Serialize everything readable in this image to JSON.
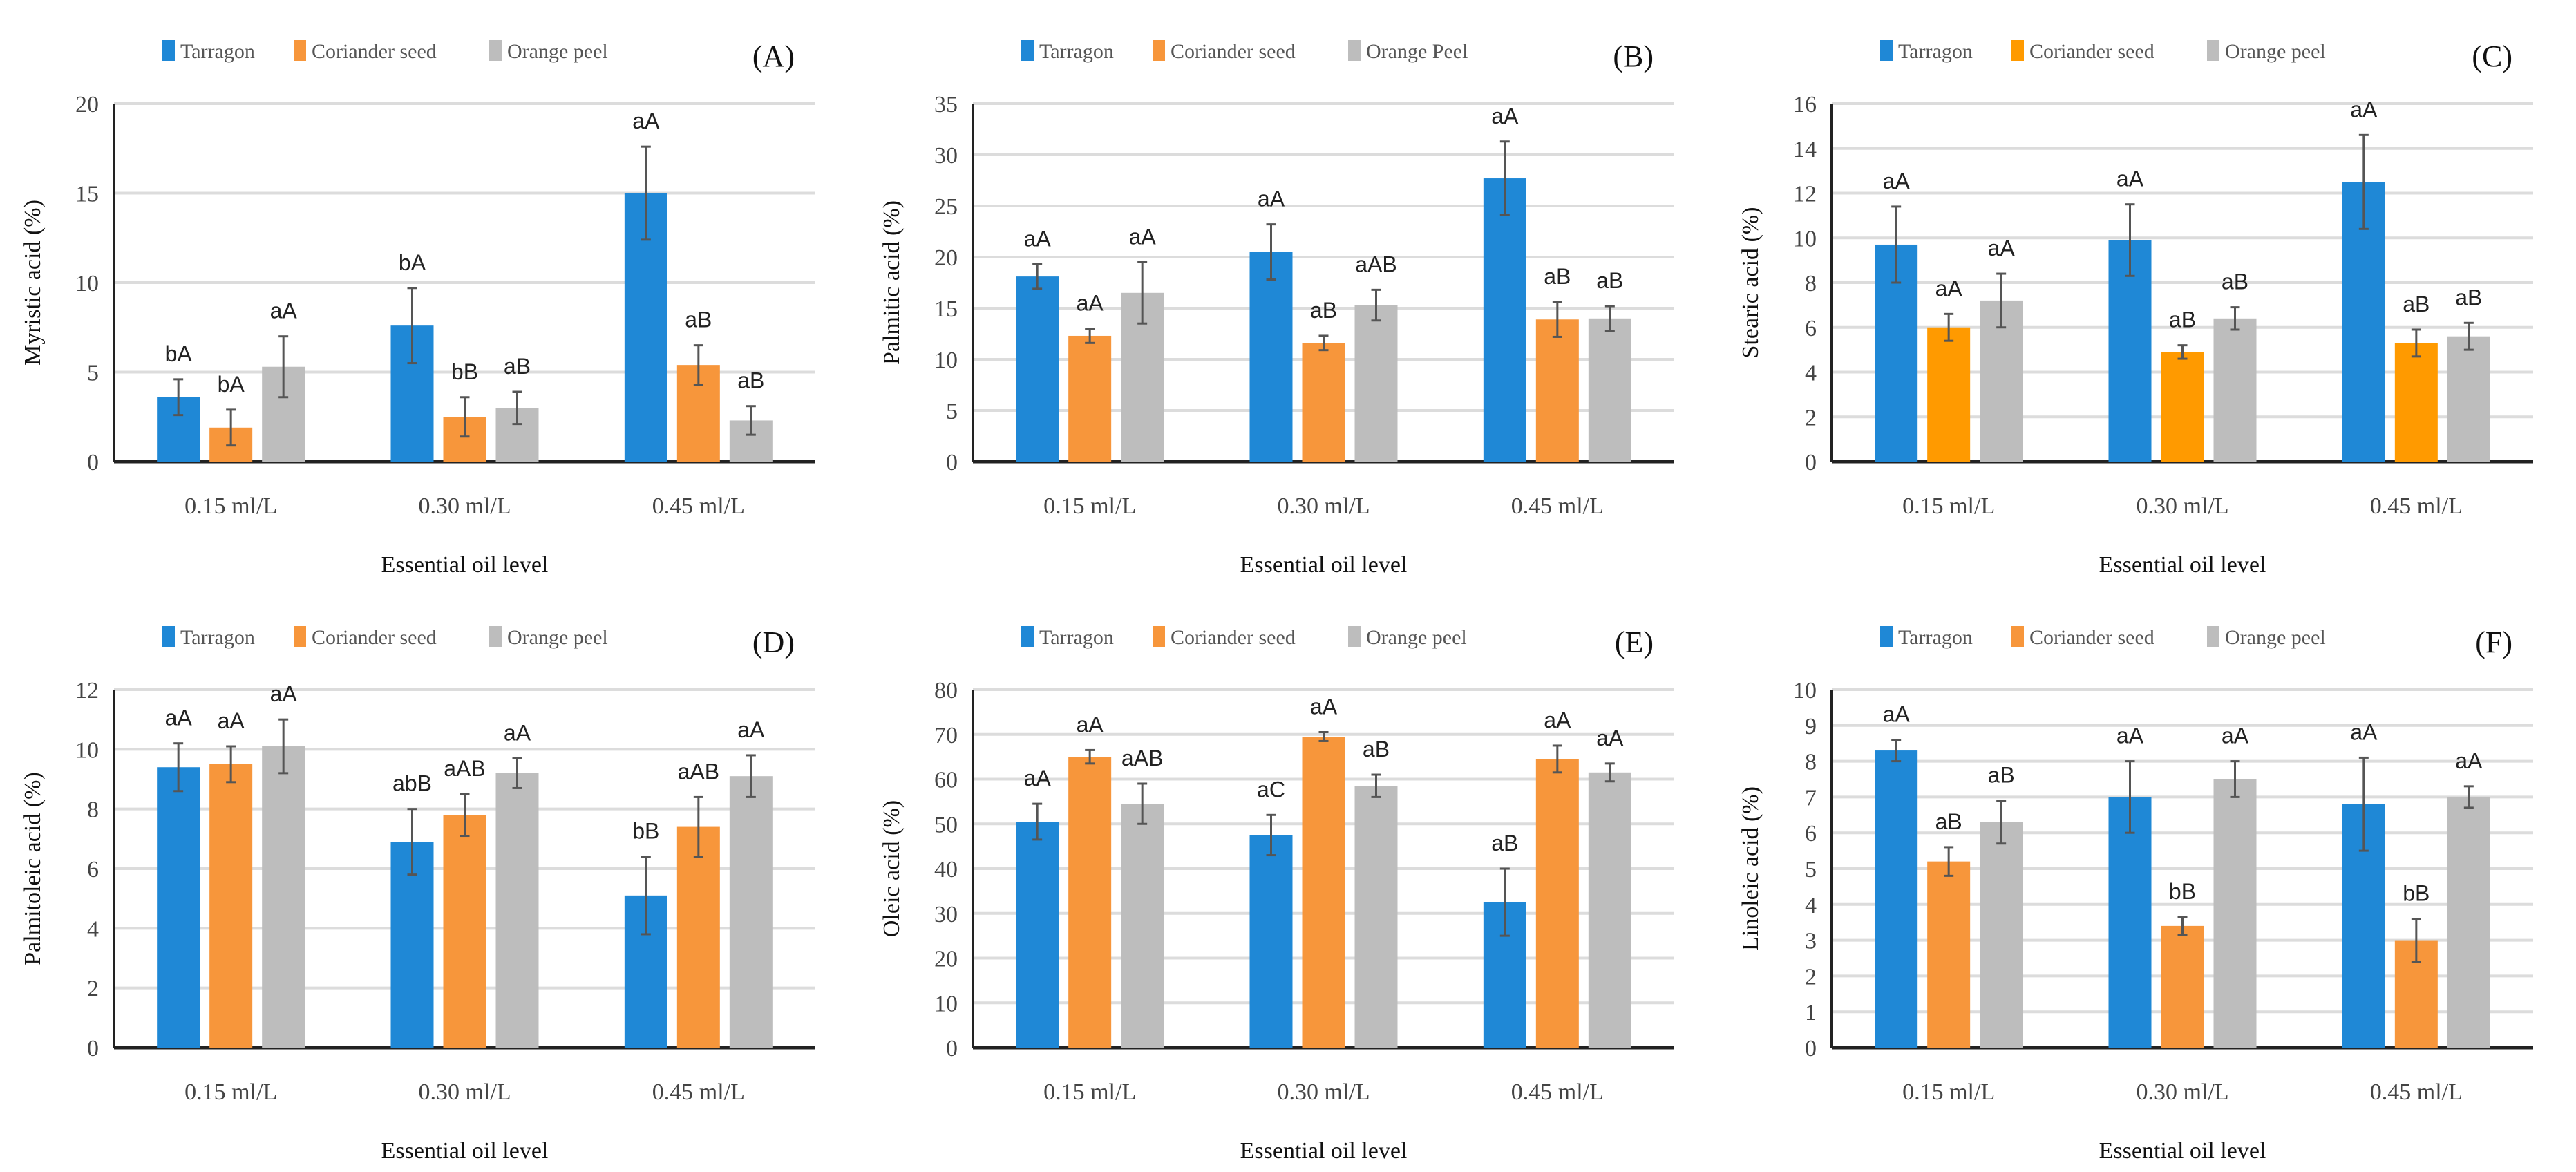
{
  "chart_data": [
    {
      "type": "bar",
      "panel_label": "(A)",
      "categories": [
        "0.15 ml/L",
        "0.30 ml/L",
        "0.45 ml/L"
      ],
      "xlabel": "Essential oil level",
      "ylabel": "Myristic acid (%)",
      "ylim": [
        0,
        20
      ],
      "ystep": 5,
      "grid": true,
      "legend": "top",
      "series": [
        {
          "name": "Tarragon",
          "color": "#1f88d6",
          "values": [
            3.6,
            7.6,
            15.0
          ],
          "errors": [
            1.0,
            2.1,
            2.6
          ],
          "labels": [
            "bA",
            "bA",
            "aA"
          ]
        },
        {
          "name": "Coriander seed",
          "color": "#f7963b",
          "values": [
            1.9,
            2.5,
            5.4
          ],
          "errors": [
            1.0,
            1.1,
            1.1
          ],
          "labels": [
            "bA",
            "bB",
            "aB"
          ]
        },
        {
          "name": "Orange peel",
          "color": "#bdbdbd",
          "values": [
            5.3,
            3.0,
            2.3
          ],
          "errors": [
            1.7,
            0.9,
            0.8
          ],
          "labels": [
            "aA",
            "aB",
            "aB"
          ]
        }
      ]
    },
    {
      "type": "bar",
      "panel_label": "(B)",
      "categories": [
        "0.15 ml/L",
        "0.30 ml/L",
        "0.45 ml/L"
      ],
      "xlabel": "Essential oil level",
      "ylabel": "Palmitic acid (%)",
      "ylim": [
        0,
        35
      ],
      "ystep": 5,
      "grid": true,
      "legend": "top",
      "series": [
        {
          "name": "Tarragon",
          "color": "#1f88d6",
          "values": [
            18.1,
            20.5,
            27.7
          ],
          "errors": [
            1.2,
            2.7,
            3.6
          ],
          "labels": [
            "aA",
            "aA",
            "aA"
          ]
        },
        {
          "name": "Coriander seed",
          "color": "#f7963b",
          "values": [
            12.3,
            11.6,
            13.9
          ],
          "errors": [
            0.7,
            0.7,
            1.7
          ],
          "labels": [
            "aA",
            "aB",
            "aB"
          ]
        },
        {
          "name": "Orange Peel",
          "color": "#bdbdbd",
          "values": [
            16.5,
            15.3,
            14.0
          ],
          "errors": [
            3.0,
            1.5,
            1.2
          ],
          "labels": [
            "aA",
            "aAB",
            "aB"
          ]
        }
      ]
    },
    {
      "type": "bar",
      "panel_label": "(C)",
      "categories": [
        "0.15 ml/L",
        "0.30 ml/L",
        "0.45 ml/L"
      ],
      "xlabel": "Essential oil level",
      "ylabel": "Stearic acid (%)",
      "ylim": [
        0,
        16
      ],
      "ystep": 2,
      "grid": true,
      "legend": "top",
      "series": [
        {
          "name": "Tarragon",
          "color": "#1f88d6",
          "values": [
            9.7,
            9.9,
            12.5
          ],
          "errors": [
            1.7,
            1.6,
            2.1
          ],
          "labels": [
            "aA",
            "aA",
            "aA"
          ]
        },
        {
          "name": "Coriander seed",
          "color": "#ff9a00",
          "values": [
            6.0,
            4.9,
            5.3
          ],
          "errors": [
            0.6,
            0.3,
            0.6
          ],
          "labels": [
            "aA",
            "aB",
            "aB"
          ]
        },
        {
          "name": "Orange peel",
          "color": "#bdbdbd",
          "values": [
            7.2,
            6.4,
            5.6
          ],
          "errors": [
            1.2,
            0.5,
            0.6
          ],
          "labels": [
            "aA",
            "aB",
            "aB"
          ]
        }
      ]
    },
    {
      "type": "bar",
      "panel_label": "(D)",
      "categories": [
        "0.15 ml/L",
        "0.30 ml/L",
        "0.45 ml/L"
      ],
      "xlabel": "Essential oil level",
      "ylabel": "Palmitoleic acid (%)",
      "ylim": [
        0,
        12
      ],
      "ystep": 2,
      "grid": true,
      "legend": "top",
      "series": [
        {
          "name": "Tarragon",
          "color": "#1f88d6",
          "values": [
            9.4,
            6.9,
            5.1
          ],
          "errors": [
            0.8,
            1.1,
            1.3
          ],
          "labels": [
            "aA",
            "abB",
            "bB"
          ]
        },
        {
          "name": "Coriander seed",
          "color": "#f7963b",
          "values": [
            9.5,
            7.8,
            7.4
          ],
          "errors": [
            0.6,
            0.7,
            1.0
          ],
          "labels": [
            "aA",
            "aAB",
            "aAB"
          ]
        },
        {
          "name": "Orange peel",
          "color": "#bdbdbd",
          "values": [
            10.1,
            9.2,
            9.1
          ],
          "errors": [
            0.9,
            0.5,
            0.7
          ],
          "labels": [
            "aA",
            "aA",
            "aA"
          ]
        }
      ]
    },
    {
      "type": "bar",
      "panel_label": "(E)",
      "categories": [
        "0.15 ml/L",
        "0.30 ml/L",
        "0.45 ml/L"
      ],
      "xlabel": "Essential oil  level",
      "ylabel": "Oleic acid (%)",
      "ylim": [
        0,
        80
      ],
      "ystep": 10,
      "grid": true,
      "legend": "top",
      "series": [
        {
          "name": "Tarragon",
          "color": "#1f88d6",
          "values": [
            50.5,
            47.5,
            32.5
          ],
          "errors": [
            4.0,
            4.5,
            7.5
          ],
          "labels": [
            "aA",
            "aC",
            "aB"
          ]
        },
        {
          "name": "Coriander seed",
          "color": "#f7963b",
          "values": [
            65.0,
            69.5,
            64.5
          ],
          "errors": [
            1.5,
            1.0,
            3.0
          ],
          "labels": [
            "aA",
            "aA",
            "aA"
          ]
        },
        {
          "name": "Orange peel",
          "color": "#bdbdbd",
          "values": [
            54.5,
            58.5,
            61.5
          ],
          "errors": [
            4.5,
            2.5,
            2.0
          ],
          "labels": [
            "aAB",
            "aB",
            "aA"
          ]
        }
      ]
    },
    {
      "type": "bar",
      "panel_label": "(F)",
      "categories": [
        "0.15 ml/L",
        "0.30 ml/L",
        "0.45 ml/L"
      ],
      "xlabel": "Essential oil level",
      "ylabel": "Linoleic acid (%)",
      "ylim": [
        0,
        10
      ],
      "ystep": 1,
      "grid": true,
      "legend": "top",
      "series": [
        {
          "name": "Tarragon",
          "color": "#1f88d6",
          "values": [
            8.3,
            7.0,
            6.8
          ],
          "errors": [
            0.3,
            1.0,
            1.3
          ],
          "labels": [
            "aA",
            "aA",
            "aA"
          ]
        },
        {
          "name": "Coriander seed",
          "color": "#f7963b",
          "values": [
            5.2,
            3.4,
            3.0
          ],
          "errors": [
            0.4,
            0.25,
            0.6
          ],
          "labels": [
            "aB",
            "bB",
            "bB"
          ]
        },
        {
          "name": "Orange peel",
          "color": "#bdbdbd",
          "values": [
            6.3,
            7.5,
            7.0
          ],
          "errors": [
            0.6,
            0.5,
            0.3
          ],
          "labels": [
            "aB",
            "aA",
            "aA"
          ]
        }
      ]
    }
  ]
}
